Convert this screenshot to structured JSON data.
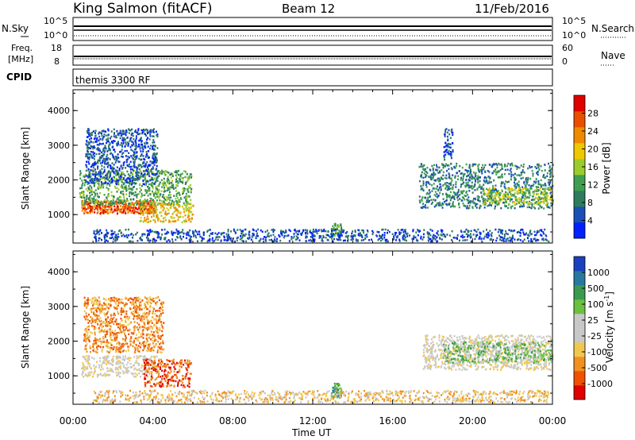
{
  "header": {
    "station": "King Salmon (fitACF)",
    "beam": "Beam 12",
    "date": "11/Feb/2016"
  },
  "nsky_panel": {
    "left_label": "N.Sky",
    "right_label": "N.Search",
    "left_ticks": [
      "10^5",
      "10^0"
    ],
    "right_ticks": [
      "10^5",
      "10^0"
    ]
  },
  "freq_panel": {
    "left_label_1": "Freq.",
    "left_label_2": "[MHz]",
    "right_label": "Nave",
    "left_ticks": [
      "18",
      "8"
    ],
    "right_ticks": [
      "60",
      "0"
    ]
  },
  "cpid_panel": {
    "label": "CPID",
    "program": "themis 3300 RF"
  },
  "colors": {
    "power": [
      "#0020ff",
      "#1a4fb5",
      "#2f7b5d",
      "#3f9f4f",
      "#9ccc2a",
      "#f0c800",
      "#f08a00",
      "#e85000",
      "#e00000"
    ],
    "velocity": [
      "#e00000",
      "#f05000",
      "#f09020",
      "#f0c850",
      "#c8c8c8",
      "#c8c8c8",
      "#6cc040",
      "#3a9a50",
      "#2a78a0",
      "#1a40c0"
    ]
  },
  "chart_data": [
    {
      "type": "heatmap",
      "name_shown": "Power",
      "xlabel": "",
      "ylabel": "Slant Range [km]",
      "xlim": [
        0,
        24
      ],
      "ylim": [
        180,
        4600
      ],
      "yticks": [
        "1000",
        "2000",
        "3000",
        "4000"
      ],
      "colorbar": {
        "label": "Power [dB]",
        "ticks": [
          "4",
          "8",
          "12",
          "16",
          "20",
          "24",
          "28"
        ]
      },
      "regions": [
        {
          "t0": 0.4,
          "t1": 4.1,
          "r0": 1050,
          "r1": 1420,
          "level": 7
        },
        {
          "t0": 0.3,
          "t1": 5.9,
          "r0": 1300,
          "r1": 2300,
          "level": 3
        },
        {
          "t0": 0.6,
          "t1": 4.2,
          "r0": 1900,
          "r1": 3500,
          "level": 1
        },
        {
          "t0": 3.3,
          "t1": 6.0,
          "r0": 800,
          "r1": 1350,
          "level": 5
        },
        {
          "t0": 17.3,
          "t1": 24.0,
          "r0": 1200,
          "r1": 2500,
          "level": 2
        },
        {
          "t0": 20.5,
          "t1": 24.0,
          "r0": 1300,
          "r1": 1800,
          "level": 4
        },
        {
          "t0": 18.5,
          "t1": 19.0,
          "r0": 2600,
          "r1": 3500,
          "level": 1
        },
        {
          "t0": 12.9,
          "t1": 13.4,
          "r0": 400,
          "r1": 800,
          "level": 3
        },
        {
          "t0": 1.0,
          "t1": 23.8,
          "r0": 250,
          "r1": 600,
          "level": 1
        }
      ]
    },
    {
      "type": "heatmap",
      "name_shown": "Velocity",
      "xlabel": "Time UT",
      "ylabel": "Slant Range [km]",
      "xlim": [
        0,
        24
      ],
      "ylim": [
        180,
        4600
      ],
      "xticks": [
        "00:00",
        "04:00",
        "08:00",
        "12:00",
        "16:00",
        "20:00",
        "00:00"
      ],
      "yticks": [
        "1000",
        "2000",
        "3000",
        "4000"
      ],
      "colorbar": {
        "label": "Velocity [m s",
        "label_sup": "-1",
        "label_end": "]",
        "ticks": [
          "-1000",
          "-500",
          "-100",
          "-25",
          "25",
          "100",
          "500",
          "1000"
        ]
      },
      "regions": [
        {
          "t0": 0.4,
          "t1": 4.3,
          "r0": 1000,
          "r1": 1600,
          "level": 4
        },
        {
          "t0": 0.5,
          "t1": 4.5,
          "r0": 1700,
          "r1": 3300,
          "level": 2
        },
        {
          "t0": 3.5,
          "t1": 5.9,
          "r0": 700,
          "r1": 1500,
          "level": 1
        },
        {
          "t0": 17.5,
          "t1": 24.0,
          "r0": 1200,
          "r1": 2200,
          "level": 4
        },
        {
          "t0": 18.5,
          "t1": 24.0,
          "r0": 1400,
          "r1": 2000,
          "level": 6
        },
        {
          "t0": 12.9,
          "t1": 13.4,
          "r0": 400,
          "r1": 800,
          "level": 7
        },
        {
          "t0": 1.0,
          "t1": 23.8,
          "r0": 250,
          "r1": 600,
          "level": 3
        }
      ]
    }
  ]
}
